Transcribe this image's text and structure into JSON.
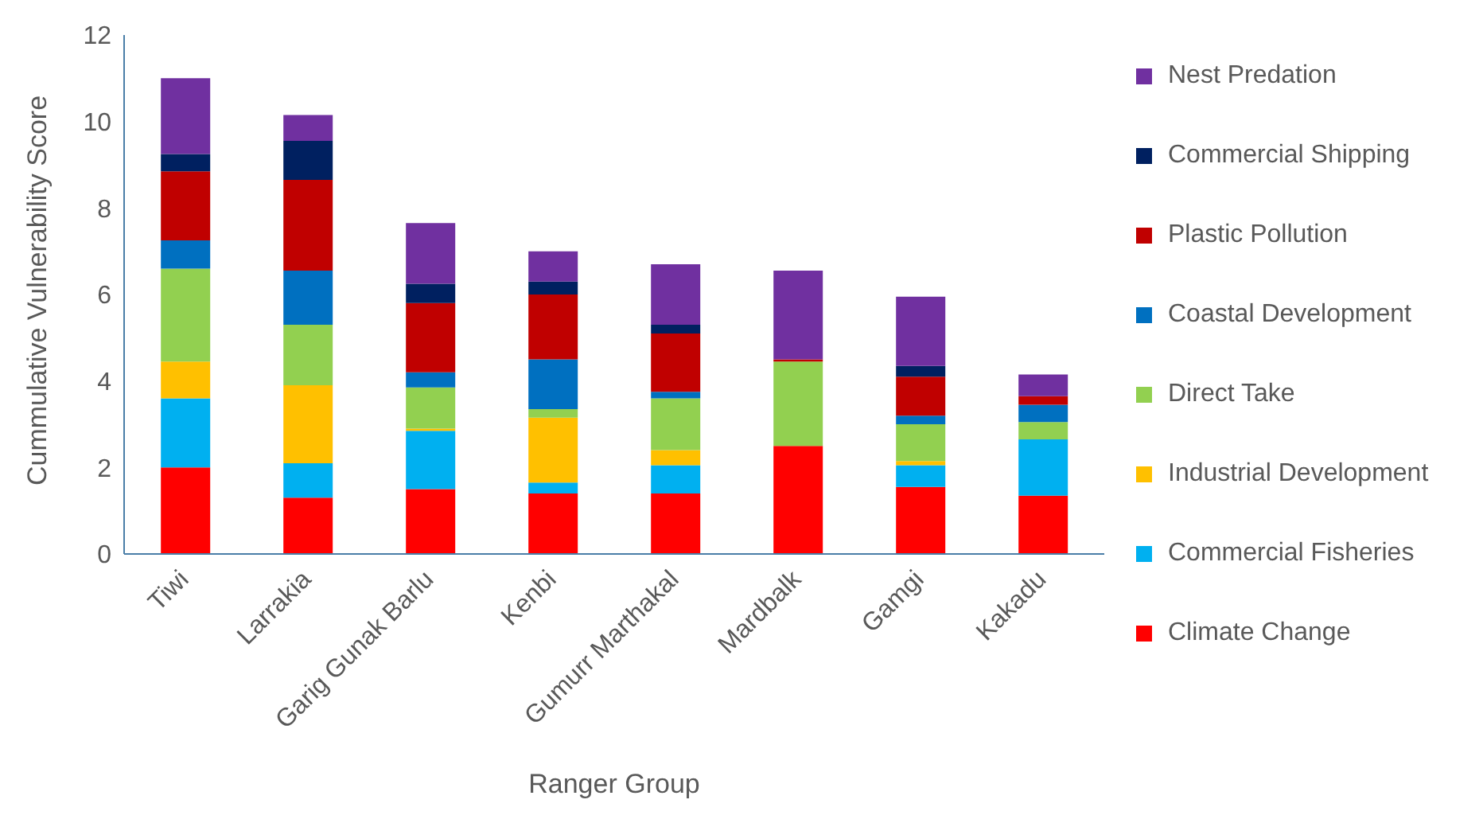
{
  "chart_data": {
    "type": "bar",
    "stacked": true,
    "xlabel": "Ranger Group",
    "ylabel": "Cummulative Vulnerability Score",
    "categories": [
      "Tiwi",
      "Larrakia",
      "Garig Gunak Barlu",
      "Kenbi",
      "Gumurr Marthakal",
      "Mardbalk",
      "Gamgi",
      "Kakadu"
    ],
    "ylim": [
      0,
      12
    ],
    "yticks": [
      0,
      2,
      4,
      6,
      8,
      10,
      12
    ],
    "grid": false,
    "legend": "right",
    "series": [
      {
        "name": "Climate Change",
        "color": "#ff0000",
        "values": [
          2.0,
          1.3,
          1.5,
          1.4,
          1.4,
          2.5,
          1.55,
          1.35
        ]
      },
      {
        "name": "Commercial Fisheries",
        "color": "#00b0f0",
        "values": [
          1.6,
          0.8,
          1.35,
          0.25,
          0.65,
          0,
          0.5,
          1.3
        ]
      },
      {
        "name": "Industrial Development",
        "color": "#ffc000",
        "values": [
          0.85,
          1.8,
          0.05,
          1.5,
          0.35,
          0,
          0.1,
          0
        ]
      },
      {
        "name": "Direct Take",
        "color": "#92d050",
        "values": [
          2.15,
          1.4,
          0.95,
          0.2,
          1.2,
          1.95,
          0.85,
          0.4
        ]
      },
      {
        "name": "Coastal Development",
        "color": "#0070c0",
        "values": [
          0.65,
          1.25,
          0.35,
          1.15,
          0.15,
          0,
          0.2,
          0.4
        ]
      },
      {
        "name": "Plastic Pollution",
        "color": "#c00000",
        "values": [
          1.6,
          2.1,
          1.6,
          1.5,
          1.35,
          0.05,
          0.9,
          0.2
        ]
      },
      {
        "name": "Commercial Shipping",
        "color": "#002060",
        "values": [
          0.4,
          0.9,
          0.45,
          0.3,
          0.2,
          0,
          0.25,
          0
        ]
      },
      {
        "name": "Nest Predation",
        "color": "#7030a0",
        "values": [
          1.75,
          0.6,
          1.4,
          0.7,
          1.4,
          2.05,
          1.6,
          0.5
        ]
      }
    ]
  }
}
